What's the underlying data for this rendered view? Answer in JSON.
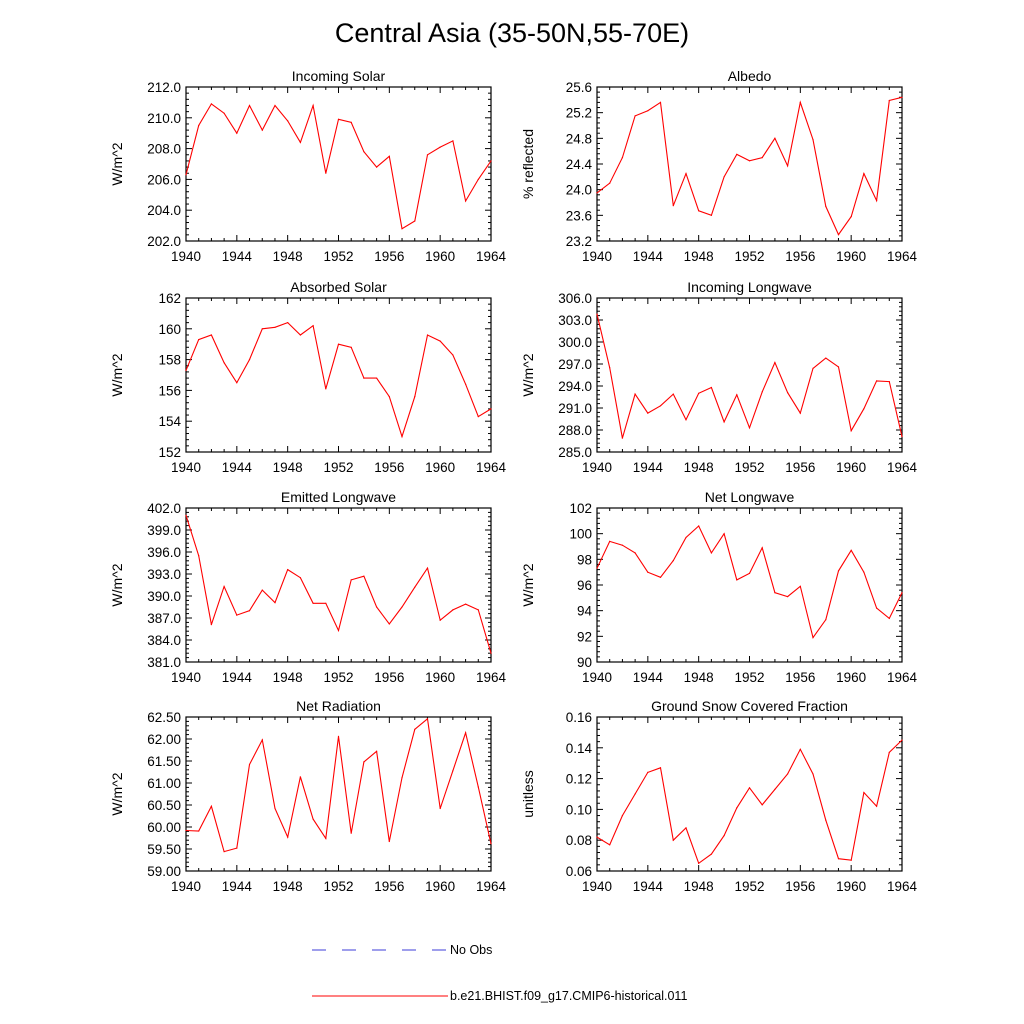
{
  "figure": {
    "title": "Central Asia (35-50N,55-70E)"
  },
  "legend": {
    "entries": [
      {
        "label": "No Obs",
        "color": "#3c3cd8",
        "dashed": true
      },
      {
        "label": "b.e21.BHIST.f09_g17.CMIP6-historical.011",
        "color": "#ff0000",
        "dashed": false
      }
    ]
  },
  "chart_data": [
    {
      "type": "line",
      "title": "Incoming Solar",
      "ylabel": "W/m^2",
      "xlim": [
        1940,
        1964
      ],
      "xticks": [
        1940,
        1944,
        1948,
        1952,
        1956,
        1960,
        1964
      ],
      "ylim": [
        202,
        212
      ],
      "yticks": [
        "202.0",
        "204.0",
        "206.0",
        "208.0",
        "210.0",
        "212.0"
      ],
      "x": [
        1940,
        1941,
        1942,
        1943,
        1944,
        1945,
        1946,
        1947,
        1948,
        1949,
        1950,
        1951,
        1952,
        1953,
        1954,
        1955,
        1956,
        1957,
        1958,
        1959,
        1960,
        1961,
        1962,
        1963,
        1964
      ],
      "series": [
        {
          "name": "b.e21.BHIST.f09_g17.CMIP6-historical.011",
          "color": "#ff0000",
          "values": [
            206.3,
            209.5,
            210.9,
            210.3,
            209.0,
            210.8,
            209.2,
            210.8,
            209.8,
            208.4,
            210.8,
            206.4,
            209.9,
            209.7,
            207.8,
            206.8,
            207.5,
            202.8,
            203.3,
            207.6,
            208.1,
            208.5,
            204.6,
            206.0,
            207.2
          ]
        }
      ]
    },
    {
      "type": "line",
      "title": "Albedo",
      "ylabel": "% reflected",
      "xlim": [
        1940,
        1964
      ],
      "xticks": [
        1940,
        1944,
        1948,
        1952,
        1956,
        1960,
        1964
      ],
      "ylim": [
        23.2,
        25.6
      ],
      "yticks": [
        "23.2",
        "23.6",
        "24.0",
        "24.4",
        "24.8",
        "25.2",
        "25.6"
      ],
      "x": [
        1940,
        1941,
        1942,
        1943,
        1944,
        1945,
        1946,
        1947,
        1948,
        1949,
        1950,
        1951,
        1952,
        1953,
        1954,
        1955,
        1956,
        1957,
        1958,
        1959,
        1960,
        1961,
        1962,
        1963,
        1964
      ],
      "series": [
        {
          "name": "b.e21.BHIST.f09_g17.CMIP6-historical.011",
          "color": "#ff0000",
          "values": [
            23.95,
            24.1,
            24.5,
            25.15,
            25.23,
            25.36,
            23.75,
            24.25,
            23.67,
            23.6,
            24.2,
            24.55,
            24.45,
            24.5,
            24.8,
            24.37,
            25.36,
            24.78,
            23.74,
            23.3,
            23.58,
            24.25,
            23.83,
            25.39,
            25.44
          ]
        }
      ]
    },
    {
      "type": "line",
      "title": "Absorbed Solar",
      "ylabel": "W/m^2",
      "xlim": [
        1940,
        1964
      ],
      "xticks": [
        1940,
        1944,
        1948,
        1952,
        1956,
        1960,
        1964
      ],
      "ylim": [
        152,
        162
      ],
      "yticks": [
        "152",
        "154",
        "156",
        "158",
        "160",
        "162"
      ],
      "x": [
        1940,
        1941,
        1942,
        1943,
        1944,
        1945,
        1946,
        1947,
        1948,
        1949,
        1950,
        1951,
        1952,
        1953,
        1954,
        1955,
        1956,
        1957,
        1958,
        1959,
        1960,
        1961,
        1962,
        1963,
        1964
      ],
      "series": [
        {
          "name": "b.e21.BHIST.f09_g17.CMIP6-historical.011",
          "color": "#ff0000",
          "values": [
            157.3,
            159.3,
            159.6,
            157.8,
            156.5,
            158.0,
            160.0,
            160.1,
            160.4,
            159.6,
            160.2,
            156.1,
            159.0,
            158.8,
            156.8,
            156.8,
            155.6,
            153.0,
            155.6,
            159.6,
            159.2,
            158.3,
            156.4,
            154.3,
            154.8
          ]
        }
      ]
    },
    {
      "type": "line",
      "title": "Incoming Longwave",
      "ylabel": "W/m^2",
      "xlim": [
        1940,
        1964
      ],
      "xticks": [
        1940,
        1944,
        1948,
        1952,
        1956,
        1960,
        1964
      ],
      "ylim": [
        285,
        306
      ],
      "yticks": [
        "285.0",
        "288.0",
        "291.0",
        "294.0",
        "297.0",
        "300.0",
        "303.0",
        "306.0"
      ],
      "x": [
        1940,
        1941,
        1942,
        1943,
        1944,
        1945,
        1946,
        1947,
        1948,
        1949,
        1950,
        1951,
        1952,
        1953,
        1954,
        1955,
        1956,
        1957,
        1958,
        1959,
        1960,
        1961,
        1962,
        1963,
        1964
      ],
      "series": [
        {
          "name": "b.e21.BHIST.f09_g17.CMIP6-historical.011",
          "color": "#ff0000",
          "values": [
            303.8,
            296.5,
            286.9,
            292.9,
            290.3,
            291.3,
            292.9,
            289.4,
            293.0,
            293.8,
            289.1,
            292.8,
            288.3,
            293.2,
            297.2,
            293.1,
            290.3,
            296.4,
            297.8,
            296.6,
            287.9,
            290.9,
            294.7,
            294.6,
            287.1
          ]
        }
      ]
    },
    {
      "type": "line",
      "title": "Emitted Longwave",
      "ylabel": "W/m^2",
      "xlim": [
        1940,
        1964
      ],
      "xticks": [
        1940,
        1944,
        1948,
        1952,
        1956,
        1960,
        1964
      ],
      "ylim": [
        381,
        402
      ],
      "yticks": [
        "381.0",
        "384.0",
        "387.0",
        "390.0",
        "393.0",
        "396.0",
        "399.0",
        "402.0"
      ],
      "x": [
        1940,
        1941,
        1942,
        1943,
        1944,
        1945,
        1946,
        1947,
        1948,
        1949,
        1950,
        1951,
        1952,
        1953,
        1954,
        1955,
        1956,
        1957,
        1958,
        1959,
        1960,
        1961,
        1962,
        1963,
        1964
      ],
      "series": [
        {
          "name": "b.e21.BHIST.f09_g17.CMIP6-historical.011",
          "color": "#ff0000",
          "values": [
            401.0,
            395.5,
            386.1,
            391.3,
            387.4,
            388.0,
            390.8,
            389.1,
            393.6,
            392.5,
            389.0,
            389.0,
            385.3,
            392.2,
            392.7,
            388.5,
            386.2,
            388.5,
            391.2,
            393.8,
            386.7,
            388.1,
            388.9,
            388.1,
            382.2
          ]
        }
      ]
    },
    {
      "type": "line",
      "title": "Net Longwave",
      "ylabel": "W/m^2",
      "xlim": [
        1940,
        1964
      ],
      "xticks": [
        1940,
        1944,
        1948,
        1952,
        1956,
        1960,
        1964
      ],
      "ylim": [
        90,
        102
      ],
      "yticks": [
        "90",
        "92",
        "94",
        "96",
        "98",
        "100",
        "102"
      ],
      "x": [
        1940,
        1941,
        1942,
        1943,
        1944,
        1945,
        1946,
        1947,
        1948,
        1949,
        1950,
        1951,
        1952,
        1953,
        1954,
        1955,
        1956,
        1957,
        1958,
        1959,
        1960,
        1961,
        1962,
        1963,
        1964
      ],
      "series": [
        {
          "name": "b.e21.BHIST.f09_g17.CMIP6-historical.011",
          "color": "#ff0000",
          "values": [
            97.3,
            99.4,
            99.1,
            98.5,
            97.0,
            96.6,
            97.9,
            99.7,
            100.6,
            98.5,
            100.0,
            96.4,
            96.9,
            98.9,
            95.4,
            95.1,
            95.9,
            91.9,
            93.3,
            97.1,
            98.7,
            97.0,
            94.2,
            93.4,
            95.4
          ]
        }
      ]
    },
    {
      "type": "line",
      "title": "Net Radiation",
      "ylabel": "W/m^2",
      "xlim": [
        1940,
        1964
      ],
      "xticks": [
        1940,
        1944,
        1948,
        1952,
        1956,
        1960,
        1964
      ],
      "ylim": [
        59.0,
        62.5
      ],
      "yticks": [
        "59.00",
        "59.50",
        "60.00",
        "60.50",
        "61.00",
        "61.50",
        "62.00",
        "62.50"
      ],
      "x": [
        1940,
        1941,
        1942,
        1943,
        1944,
        1945,
        1946,
        1947,
        1948,
        1949,
        1950,
        1951,
        1952,
        1953,
        1954,
        1955,
        1956,
        1957,
        1958,
        1959,
        1960,
        1961,
        1962,
        1963,
        1964
      ],
      "series": [
        {
          "name": "b.e21.BHIST.f09_g17.CMIP6-historical.011",
          "color": "#ff0000",
          "values": [
            59.92,
            59.91,
            60.47,
            59.44,
            59.52,
            61.42,
            61.98,
            60.42,
            59.77,
            61.14,
            60.18,
            59.74,
            62.06,
            59.86,
            61.48,
            61.72,
            59.67,
            61.12,
            62.22,
            62.46,
            60.42,
            61.28,
            62.14,
            60.91,
            59.62
          ]
        }
      ]
    },
    {
      "type": "line",
      "title": "Ground Snow Covered Fraction",
      "ylabel": "unitless",
      "xlim": [
        1940,
        1964
      ],
      "xticks": [
        1940,
        1944,
        1948,
        1952,
        1956,
        1960,
        1964
      ],
      "ylim": [
        0.06,
        0.16
      ],
      "yticks": [
        "0.06",
        "0.08",
        "0.10",
        "0.12",
        "0.14",
        "0.16"
      ],
      "x": [
        1940,
        1941,
        1942,
        1943,
        1944,
        1945,
        1946,
        1947,
        1948,
        1949,
        1950,
        1951,
        1952,
        1953,
        1954,
        1955,
        1956,
        1957,
        1958,
        1959,
        1960,
        1961,
        1962,
        1963,
        1964
      ],
      "series": [
        {
          "name": "b.e21.BHIST.f09_g17.CMIP6-historical.011",
          "color": "#ff0000",
          "values": [
            0.082,
            0.077,
            0.096,
            0.11,
            0.124,
            0.127,
            0.08,
            0.088,
            0.065,
            0.071,
            0.083,
            0.101,
            0.114,
            0.103,
            0.113,
            0.123,
            0.139,
            0.123,
            0.093,
            0.068,
            0.067,
            0.111,
            0.102,
            0.137,
            0.145
          ]
        }
      ]
    }
  ]
}
